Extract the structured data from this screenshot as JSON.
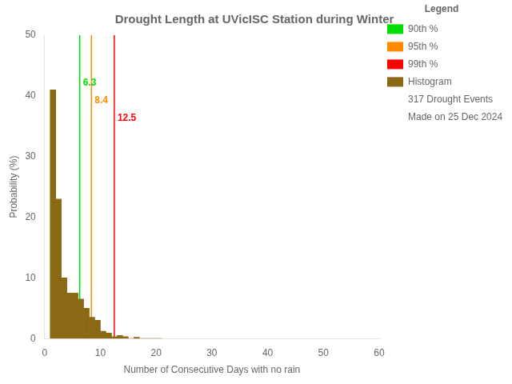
{
  "chart_data": {
    "type": "histogram",
    "title": "Drought Length at UVicISC Station during Winter",
    "xlabel": "Number of Consecutive Days with no rain",
    "ylabel": "Probability (%)",
    "bins": [
      1,
      2,
      3,
      4,
      5,
      6,
      7,
      8,
      9,
      10,
      11,
      12,
      13,
      14,
      15,
      16,
      17,
      18,
      19,
      20,
      21
    ],
    "series": [
      {
        "name": "Histogram",
        "color": "#8B6914",
        "values": [
          41.0,
          23.0,
          10.0,
          7.5,
          7.5,
          6.5,
          5.0,
          3.5,
          3.0,
          1.2,
          0.9,
          0.3,
          0.5,
          0.3,
          0.0,
          0.2,
          0.0,
          0.0,
          0.0,
          0.0
        ]
      }
    ],
    "percentile_lines": [
      {
        "name": "90th %",
        "x": 6.3,
        "color": "#00DD00"
      },
      {
        "name": "95th %",
        "x": 8.4,
        "color": "#FF8C00"
      },
      {
        "name": "99th %",
        "x": 12.5,
        "color": "#FF0000"
      }
    ],
    "legend_title": "Legend",
    "legend_notes": [
      "317 Drought Events",
      "Made on 25 Dec 2024"
    ],
    "xlim": [
      0,
      60
    ],
    "ylim": [
      0,
      50
    ],
    "xticks": [
      0,
      10,
      20,
      30,
      40,
      50,
      60
    ],
    "yticks": [
      0,
      10,
      20,
      30,
      40,
      50
    ],
    "grid": false,
    "legend": "upper right"
  }
}
